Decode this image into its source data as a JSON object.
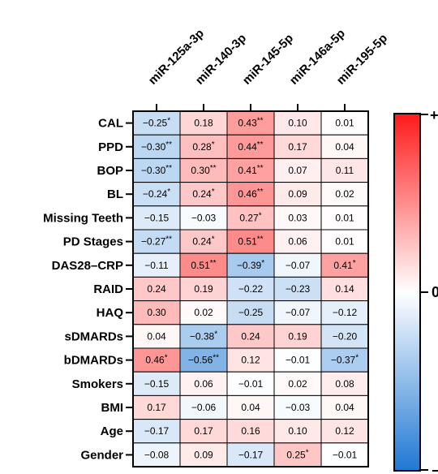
{
  "chart_data": {
    "type": "heatmap",
    "columns": [
      "miR-125a-3p",
      "miR-140-3p",
      "miR-145-5p",
      "miR-146a-5p",
      "miR-195-5p"
    ],
    "rows": [
      "CAL",
      "PPD",
      "BOP",
      "BL",
      "Missing Teeth",
      "PD Stages",
      "DAS28–CRP",
      "RAID",
      "HAQ",
      "sDMARDs",
      "bDMARDs",
      "Smokers",
      "BMI",
      "Age",
      "Gender"
    ],
    "values": [
      [
        -0.25,
        0.18,
        0.43,
        0.1,
        0.01
      ],
      [
        -0.3,
        0.28,
        0.44,
        0.17,
        0.04
      ],
      [
        -0.3,
        0.3,
        0.41,
        0.07,
        0.11
      ],
      [
        -0.24,
        0.24,
        0.46,
        0.09,
        0.02
      ],
      [
        -0.15,
        -0.03,
        0.27,
        0.03,
        0.01
      ],
      [
        -0.27,
        0.24,
        0.51,
        0.06,
        0.01
      ],
      [
        -0.11,
        0.51,
        -0.39,
        -0.07,
        0.41
      ],
      [
        0.24,
        0.19,
        -0.22,
        -0.23,
        0.14
      ],
      [
        0.3,
        0.02,
        -0.25,
        -0.07,
        -0.12
      ],
      [
        0.04,
        -0.38,
        0.24,
        0.19,
        -0.2
      ],
      [
        0.46,
        -0.56,
        0.12,
        -0.01,
        -0.37
      ],
      [
        -0.15,
        0.06,
        -0.01,
        0.02,
        0.08
      ],
      [
        0.17,
        -0.06,
        0.04,
        -0.03,
        0.04
      ],
      [
        -0.17,
        0.17,
        0.16,
        0.1,
        0.12
      ],
      [
        -0.08,
        0.09,
        -0.17,
        0.25,
        -0.01
      ]
    ],
    "labels": [
      [
        "−0.25*",
        "0.18",
        "0.43**",
        "0.10",
        "0.01"
      ],
      [
        "−0.30**",
        "0.28*",
        "0.44**",
        "0.17",
        "0.04"
      ],
      [
        "−0.30**",
        "0.30**",
        "0.41**",
        "0.07",
        "0.11"
      ],
      [
        "−0.24*",
        "0.24*",
        "0.46**",
        "0.09",
        "0.02"
      ],
      [
        "−0.15",
        "−0.03",
        "0.27*",
        "0.03",
        "0.01"
      ],
      [
        "−0.27**",
        "0.24*",
        "0.51**",
        "0.06",
        "0.01"
      ],
      [
        "−0.11",
        "0.51**",
        "−0.39*",
        "−0.07",
        "0.41*"
      ],
      [
        "0.24",
        "0.19",
        "−0.22",
        "−0.23",
        "0.14"
      ],
      [
        "0.30",
        "0.02",
        "−0.25",
        "−0.07",
        "−0.12"
      ],
      [
        "0.04",
        "−0.38*",
        "0.24",
        "0.19",
        "−0.20"
      ],
      [
        "0.46*",
        "−0.56**",
        "0.12",
        "−0.01",
        "−0.37*"
      ],
      [
        "−0.15",
        "0.06",
        "−0.01",
        "0.02",
        "0.08"
      ],
      [
        "0.17",
        "−0.06",
        "0.04",
        "−0.03",
        "0.04"
      ],
      [
        "−0.17",
        "0.17",
        "0.16",
        "0.10",
        "0.12"
      ],
      [
        "−0.08",
        "0.09",
        "−0.17",
        "0.25*",
        "−0.01"
      ]
    ],
    "color_scale": {
      "min": -1,
      "max": 1,
      "min_color": "#1f78d4",
      "mid_color": "#ffffff",
      "max_color": "#ff1a1a"
    },
    "colorbar_labels": {
      "top": "+",
      "middle": "0",
      "bottom": "−"
    },
    "grid": true,
    "legend": "right"
  }
}
